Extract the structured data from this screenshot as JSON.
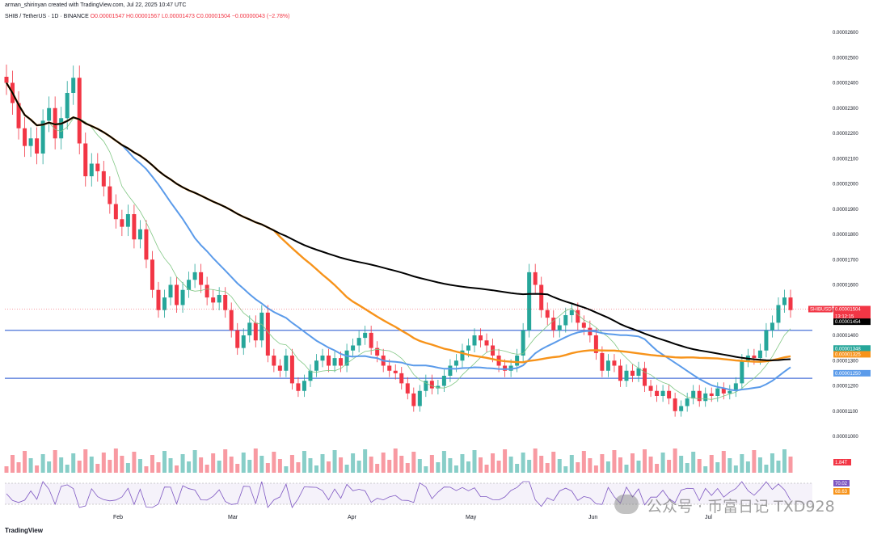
{
  "header": {
    "creator_line": "arman_shirinyan created with TradingView.com, Jul 22, 2025 10:47 UTC",
    "symbol": "SHIB / TetherUS · 1D · BINANCE",
    "ohlc": "O0.00001547 H0.00001567 L0.00001473 C0.00001504 −0.00000043 (−2.78%)"
  },
  "footer": {
    "logo": "TradingView"
  },
  "watermark": {
    "text": "公众号 · 币富日记 TXD928"
  },
  "colors": {
    "up": "#26a69a",
    "down": "#f23645",
    "ma_black": "#000000",
    "ma_orange": "#f7931a",
    "ma_blue": "#5b9bea",
    "ma_green": "#81c784",
    "hline": "#4a72d8",
    "rsi": "#7e57c2"
  },
  "chart_data": {
    "type": "candlestick",
    "title": "SHIB / TetherUS · 1D · BINANCE",
    "y_ticks": [
      1e-05,
      1.1e-05,
      1.2e-05,
      1.3e-05,
      1.4e-05,
      1.5e-05,
      1.6e-05,
      1.7e-05,
      1.8e-05,
      1.9e-05,
      2e-05,
      2.1e-05,
      2.2e-05,
      2.3e-05,
      2.4e-05,
      2.5e-05,
      2.6e-05
    ],
    "y_tick_labels": [
      "0.00001000",
      "0.00001100",
      "0.00001200",
      "0.00001300",
      "0.00001400",
      "0.00001500",
      "0.00001600",
      "0.00001700",
      "0.00001800",
      "0.00001900",
      "0.00002000",
      "0.00002100",
      "0.00002200",
      "0.00002300",
      "0.00002400",
      "0.00002500",
      "0.00002600"
    ],
    "x_labels": [
      "Feb",
      "Mar",
      "Apr",
      "May",
      "Jun",
      "Jul"
    ],
    "price_tags": [
      {
        "label": "SHIBUSDT",
        "value": 1.504e-05,
        "text": "0.00001504",
        "extra": "13:12:15",
        "color": "#f23645"
      },
      {
        "value": 1.454e-05,
        "text": "0.00001454",
        "color": "#000000"
      },
      {
        "value": 1.348e-05,
        "text": "0.00001348",
        "color": "#26a69a"
      },
      {
        "value": 1.325e-05,
        "text": "0.00001325",
        "color": "#f7931a"
      },
      {
        "value": 1.25e-05,
        "text": "0.00001250",
        "color": "#5b9bea"
      }
    ],
    "horizontal_levels": [
      1.42e-05,
      1.23e-05
    ],
    "volume_tag": "1.84T",
    "rsi_tags": [
      "70.02",
      "68.63"
    ],
    "close": [
      2.4e-05,
      2.32e-05,
      2.22e-05,
      2.15e-05,
      2.18e-05,
      2.12e-05,
      2.25e-05,
      2.3e-05,
      2.18e-05,
      2.26e-05,
      2.36e-05,
      2.42e-05,
      2.16e-05,
      2.03e-05,
      2.08e-05,
      2.05e-05,
      1.99e-05,
      1.92e-05,
      1.86e-05,
      1.83e-05,
      1.88e-05,
      1.78e-05,
      1.82e-05,
      1.7e-05,
      1.58e-05,
      1.5e-05,
      1.55e-05,
      1.6e-05,
      1.52e-05,
      1.58e-05,
      1.62e-05,
      1.65e-05,
      1.6e-05,
      1.55e-05,
      1.53e-05,
      1.56e-05,
      1.5e-05,
      1.42e-05,
      1.35e-05,
      1.4e-05,
      1.45e-05,
      1.38e-05,
      1.49e-05,
      1.32e-05,
      1.28e-05,
      1.26e-05,
      1.32e-05,
      1.21e-05,
      1.18e-05,
      1.22e-05,
      1.26e-05,
      1.3e-05,
      1.32e-05,
      1.28e-05,
      1.31e-05,
      1.28e-05,
      1.34e-05,
      1.36e-05,
      1.39e-05,
      1.41e-05,
      1.35e-05,
      1.32e-05,
      1.28e-05,
      1.26e-05,
      1.25e-05,
      1.21e-05,
      1.17e-05,
      1.12e-05,
      1.18e-05,
      1.22e-05,
      1.19e-05,
      1.2e-05,
      1.24e-05,
      1.28e-05,
      1.3e-05,
      1.34e-05,
      1.36e-05,
      1.4e-05,
      1.38e-05,
      1.36e-05,
      1.32e-05,
      1.28e-05,
      1.26e-05,
      1.28e-05,
      1.32e-05,
      1.42e-05,
      1.65e-05,
      1.6e-05,
      1.5e-05,
      1.47e-05,
      1.42e-05,
      1.44e-05,
      1.48e-05,
      1.5e-05,
      1.45e-05,
      1.43e-05,
      1.4e-05,
      1.33e-05,
      1.26e-05,
      1.3e-05,
      1.28e-05,
      1.22e-05,
      1.26e-05,
      1.24e-05,
      1.27e-05,
      1.2e-05,
      1.18e-05,
      1.16e-05,
      1.18e-05,
      1.15e-05,
      1.1e-05,
      1.12e-05,
      1.15e-05,
      1.18e-05,
      1.14e-05,
      1.17e-05,
      1.16e-05,
      1.19e-05,
      1.17e-05,
      1.18e-05,
      1.21e-05,
      1.3e-05,
      1.32e-05,
      1.31e-05,
      1.34e-05,
      1.42e-05,
      1.45e-05,
      1.52e-05,
      1.55e-05,
      1.5e-05
    ]
  }
}
